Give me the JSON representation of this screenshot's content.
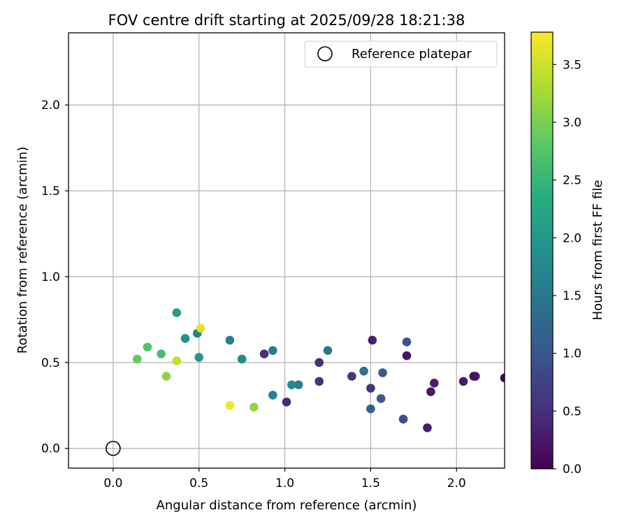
{
  "chart_data": {
    "type": "scatter",
    "title": "FOV centre drift starting at 2025/09/28 18:21:38",
    "xlabel": "Angular distance from reference (arcmin)",
    "ylabel": "Rotation from reference (arcmin)",
    "xlim": [
      -0.26,
      2.28
    ],
    "ylim": [
      -0.115,
      2.42
    ],
    "xticks": [
      0.0,
      0.5,
      1.0,
      1.5,
      2.0
    ],
    "yticks": [
      0.0,
      0.5,
      1.0,
      1.5,
      2.0
    ],
    "grid": true,
    "legend": {
      "position": "top-right",
      "entries": [
        "Reference platepar"
      ]
    },
    "reference_point": {
      "x": 0.0,
      "y": 0.0
    },
    "colorbar": {
      "label": "Hours from first FF file",
      "colormap": "viridis",
      "range": [
        0.0,
        3.78
      ],
      "ticks": [
        0.0,
        0.5,
        1.0,
        1.5,
        2.0,
        2.5,
        3.0,
        3.5
      ]
    },
    "points": [
      {
        "x": 2.28,
        "y": 0.41,
        "hours": 0.05
      },
      {
        "x": 2.1,
        "y": 0.42,
        "hours": 0.15
      },
      {
        "x": 2.11,
        "y": 0.42,
        "hours": 0.2
      },
      {
        "x": 2.04,
        "y": 0.39,
        "hours": 0.3
      },
      {
        "x": 1.87,
        "y": 0.38,
        "hours": 0.35
      },
      {
        "x": 1.85,
        "y": 0.33,
        "hours": 0.25
      },
      {
        "x": 1.83,
        "y": 0.12,
        "hours": 0.3
      },
      {
        "x": 1.71,
        "y": 0.54,
        "hours": 0.2
      },
      {
        "x": 1.51,
        "y": 0.63,
        "hours": 0.35
      },
      {
        "x": 1.5,
        "y": 0.35,
        "hours": 0.6
      },
      {
        "x": 1.39,
        "y": 0.42,
        "hours": 0.6
      },
      {
        "x": 1.2,
        "y": 0.5,
        "hours": 0.5
      },
      {
        "x": 1.2,
        "y": 0.39,
        "hours": 0.55
      },
      {
        "x": 1.01,
        "y": 0.27,
        "hours": 0.45
      },
      {
        "x": 0.88,
        "y": 0.55,
        "hours": 0.5
      },
      {
        "x": 1.71,
        "y": 0.62,
        "hours": 1.0
      },
      {
        "x": 1.69,
        "y": 0.17,
        "hours": 0.9
      },
      {
        "x": 1.56,
        "y": 0.29,
        "hours": 1.05
      },
      {
        "x": 1.57,
        "y": 0.44,
        "hours": 1.1
      },
      {
        "x": 1.5,
        "y": 0.23,
        "hours": 1.15
      },
      {
        "x": 1.46,
        "y": 0.45,
        "hours": 1.4
      },
      {
        "x": 1.25,
        "y": 0.57,
        "hours": 1.5
      },
      {
        "x": 1.08,
        "y": 0.37,
        "hours": 1.6
      },
      {
        "x": 1.04,
        "y": 0.37,
        "hours": 1.8
      },
      {
        "x": 0.93,
        "y": 0.57,
        "hours": 1.55
      },
      {
        "x": 0.93,
        "y": 0.31,
        "hours": 1.7
      },
      {
        "x": 0.75,
        "y": 0.52,
        "hours": 1.8
      },
      {
        "x": 0.68,
        "y": 0.63,
        "hours": 1.65
      },
      {
        "x": 0.49,
        "y": 0.67,
        "hours": 1.7
      },
      {
        "x": 0.42,
        "y": 0.64,
        "hours": 1.9
      },
      {
        "x": 0.5,
        "y": 0.53,
        "hours": 2.0
      },
      {
        "x": 0.37,
        "y": 0.79,
        "hours": 2.15
      },
      {
        "x": 0.28,
        "y": 0.55,
        "hours": 2.6
      },
      {
        "x": 0.2,
        "y": 0.59,
        "hours": 2.75
      },
      {
        "x": 0.14,
        "y": 0.52,
        "hours": 2.85
      },
      {
        "x": 0.31,
        "y": 0.42,
        "hours": 3.1
      },
      {
        "x": 0.82,
        "y": 0.24,
        "hours": 3.15
      },
      {
        "x": 0.37,
        "y": 0.51,
        "hours": 3.45
      },
      {
        "x": 0.51,
        "y": 0.7,
        "hours": 3.6
      },
      {
        "x": 0.68,
        "y": 0.25,
        "hours": 3.75
      }
    ]
  }
}
